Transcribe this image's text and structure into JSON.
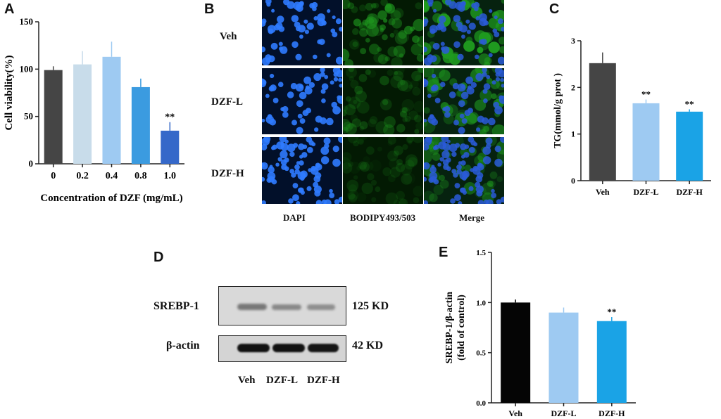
{
  "panels": {
    "A": "A",
    "B": "B",
    "C": "C",
    "D": "D",
    "E": "E"
  },
  "colors": {
    "black": "#1a1a1a",
    "dark_gray": "#454545",
    "very_light_blue": "#c8dcea",
    "light_blue": "#9ecaf2",
    "mid_blue": "#3b9be0",
    "royal_blue": "#3568c9",
    "dapi_bg": "#02102a",
    "dapi_nuc": "#2f7bff",
    "green": "#1f9a1f"
  },
  "chart_data": [
    {
      "panel": "A",
      "type": "bar",
      "categories": [
        "0",
        "0.2",
        "0.4",
        "0.8",
        "1.0"
      ],
      "values": [
        99,
        105,
        113,
        81,
        35
      ],
      "errors": [
        4,
        14,
        16,
        9,
        9
      ],
      "annotations": [
        "",
        "",
        "",
        "",
        "**"
      ],
      "colors": [
        "#454545",
        "#c8dcea",
        "#9ecaf2",
        "#3b9be0",
        "#3568c9"
      ],
      "ylabel": "Cell viability(%)",
      "xlabel": "Concentration of DZF (mg/mL)",
      "ylim": [
        0,
        150
      ],
      "yticks": [
        "0",
        "50",
        "100",
        "150"
      ]
    },
    {
      "panel": "C",
      "type": "bar",
      "categories": [
        "Veh",
        "DZF-L",
        "DZF-H"
      ],
      "values": [
        2.52,
        1.66,
        1.48
      ],
      "errors": [
        0.23,
        0.08,
        0.05
      ],
      "annotations": [
        "",
        "**",
        "**"
      ],
      "colors": [
        "#454545",
        "#9ecaf2",
        "#1aa3e6"
      ],
      "ylabel": "TG(mmol/g prot )",
      "xlabel": "",
      "ylim": [
        0,
        3
      ],
      "yticks": [
        "0",
        "1",
        "2",
        "3"
      ]
    },
    {
      "panel": "E",
      "type": "bar",
      "categories": [
        "Veh",
        "DZF-L",
        "DZF-H"
      ],
      "values": [
        1.0,
        0.9,
        0.815
      ],
      "errors": [
        0.03,
        0.05,
        0.04
      ],
      "annotations": [
        "",
        "",
        "**"
      ],
      "colors": [
        "#050505",
        "#9ecaf2",
        "#1aa3e6"
      ],
      "ylabel": "SREBP-1/β-actin\n(fold of control)",
      "xlabel": "",
      "ylim": [
        0,
        1.5
      ],
      "yticks": [
        "0.0",
        "0.5",
        "1.0",
        "1.5"
      ]
    }
  ],
  "microscopy": {
    "row_labels": [
      "Veh",
      "DZF-L",
      "DZF-H"
    ],
    "col_labels": [
      "DAPI",
      "BODIPY493/503",
      "Merge"
    ],
    "green_intensity": [
      0.85,
      0.45,
      0.25
    ]
  },
  "western": {
    "proteins": [
      "SREBP-1",
      "β-actin"
    ],
    "sizes": [
      "125 KD",
      "42 KD"
    ],
    "lanes": [
      "Veh",
      "DZF-L",
      "DZF-H"
    ]
  }
}
